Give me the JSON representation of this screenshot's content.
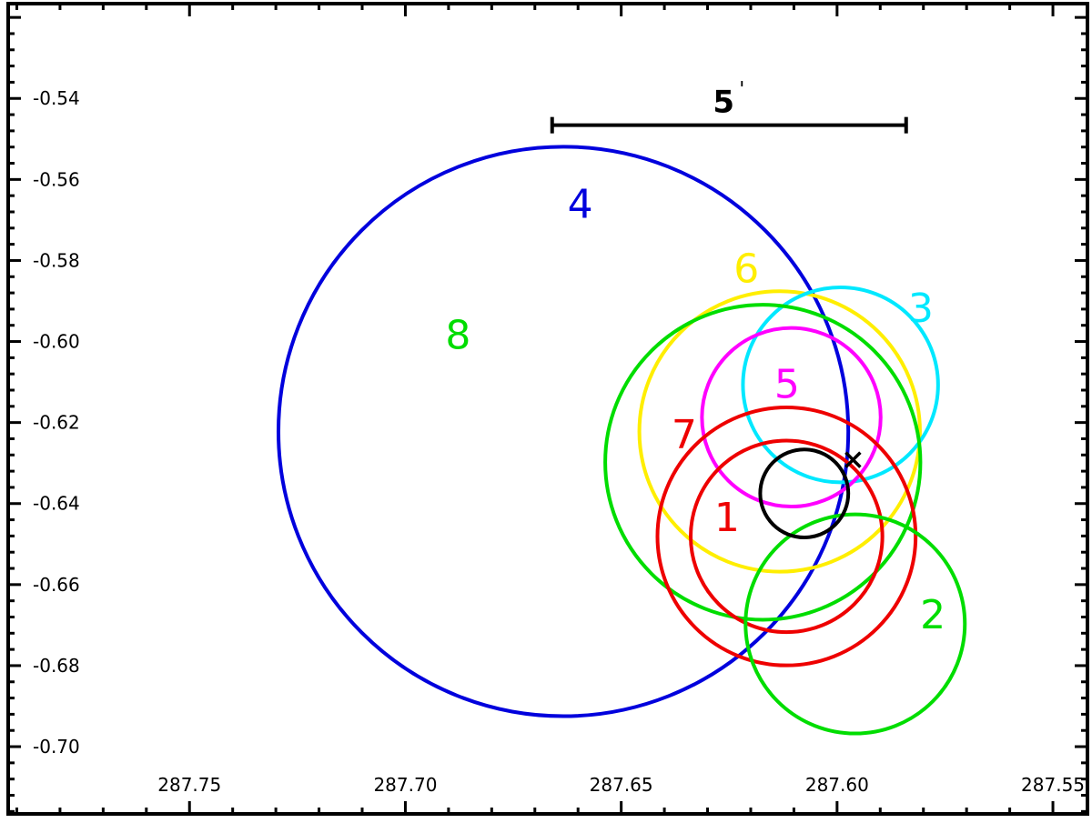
{
  "chart_data": {
    "type": "scatter",
    "title": "",
    "xlabel": "",
    "ylabel": "",
    "x_inverted": true,
    "xlim": [
      287.792,
      287.542
    ],
    "ylim": [
      -0.7166,
      -0.5166
    ],
    "x_ticks": [
      287.75,
      287.7,
      287.65,
      287.6,
      287.55
    ],
    "x_tick_labels": [
      "287.75",
      "287.70",
      "287.65",
      "287.60",
      "287.55"
    ],
    "y_ticks": [
      -0.54,
      -0.56,
      -0.58,
      -0.6,
      -0.62,
      -0.64,
      -0.66,
      -0.68,
      -0.7
    ],
    "y_tick_labels": [
      "-0.54",
      "-0.56",
      "-0.58",
      "-0.60",
      "-0.62",
      "-0.64",
      "-0.66",
      "-0.68",
      "-0.70"
    ],
    "grid": false,
    "scale_bar": {
      "label": "5",
      "prime": "'",
      "x_from": 287.666,
      "x_to": 287.584,
      "y": -0.5466
    },
    "regions": [
      {
        "id": "4",
        "label": "4",
        "color": "#0000dd",
        "x": 287.6634,
        "y": -0.6222,
        "radius_deg": 0.066,
        "label_x": 287.6595,
        "label_y": -0.5668
      },
      {
        "id": "6",
        "label": "6",
        "color": "#ffee00",
        "x": 287.6133,
        "y": -0.6222,
        "radius_deg": 0.0325,
        "label_x": 287.621,
        "label_y": -0.5827
      },
      {
        "id": "3",
        "label": "3",
        "color": "#00e8ff",
        "x": 287.5992,
        "y": -0.6107,
        "radius_deg": 0.0226,
        "label_x": 287.5806,
        "label_y": -0.5925
      },
      {
        "id": "8",
        "label": "8",
        "color": "#00dd00",
        "x": 287.6172,
        "y": -0.6298,
        "radius_deg": 0.0365,
        "label_x": 287.6878,
        "label_y": -0.5991
      },
      {
        "id": "5",
        "label": "5",
        "color": "#ff00ff",
        "x": 287.6106,
        "y": -0.6187,
        "radius_deg": 0.0207,
        "label_x": 287.6116,
        "label_y": -0.6112
      },
      {
        "id": "7",
        "label": "7",
        "color": "#ee0000",
        "x": 287.6117,
        "y": -0.6481,
        "radius_deg": 0.0299,
        "label_x": 287.6354,
        "label_y": -0.6237
      },
      {
        "id": "1",
        "label": "1",
        "color": "#ee0000",
        "x": 287.6117,
        "y": -0.6481,
        "radius_deg": 0.0222,
        "label_x": 287.6255,
        "label_y": -0.6441
      },
      {
        "id": "2",
        "label": "2",
        "color": "#00dd00",
        "x": 287.5958,
        "y": -0.6697,
        "radius_deg": 0.0254,
        "label_x": 287.5778,
        "label_y": -0.6681
      },
      {
        "id": "ref",
        "label": "",
        "color": "#000000",
        "x": 287.6076,
        "y": -0.6375,
        "radius_deg": 0.0102,
        "label_x": 0,
        "label_y": 0
      }
    ],
    "markers": [
      {
        "symbol": "x",
        "color": "#000000",
        "x": 287.5963,
        "y": -0.6292
      }
    ]
  }
}
